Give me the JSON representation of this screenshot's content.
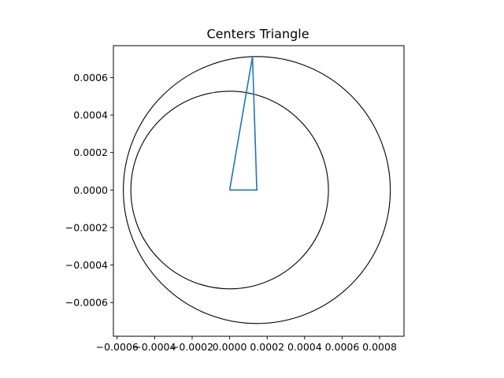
{
  "chart_data": {
    "type": "line",
    "title": "Centers Triangle",
    "xlabel": "",
    "ylabel": "",
    "xlim": [
      -0.00062,
      0.00093
    ],
    "ylim": [
      -0.00078,
      0.00077
    ],
    "grid": false,
    "aspect": "equal",
    "x_ticks": [
      -0.0006,
      -0.0004,
      -0.0002,
      0.0,
      0.0002,
      0.0004,
      0.0006,
      0.0008
    ],
    "x_tick_labels": [
      "−0.0006",
      "−0.0004",
      "−0.0002",
      "0.0000",
      "0.0002",
      "0.0004",
      "0.0006",
      "0.0008"
    ],
    "y_ticks": [
      -0.0006,
      -0.0004,
      -0.0002,
      0.0,
      0.0002,
      0.0004,
      0.0006
    ],
    "y_tick_labels": [
      "−0.0006",
      "−0.0004",
      "−0.0002",
      "0.0000",
      "0.0002",
      "0.0004",
      "0.0006"
    ],
    "triangle": {
      "color": "#1f77b4",
      "points": [
        [
          0.0,
          0.0
        ],
        [
          0.000145,
          0.0
        ],
        [
          0.000122,
          0.000712
        ],
        [
          0.0,
          0.0
        ]
      ]
    },
    "circles": [
      {
        "cx": 0.0,
        "cy": 0.0,
        "r": 0.000527,
        "color": "#000000"
      },
      {
        "cx": 0.000145,
        "cy": 0.0,
        "r": 0.000712,
        "color": "#000000"
      }
    ]
  }
}
